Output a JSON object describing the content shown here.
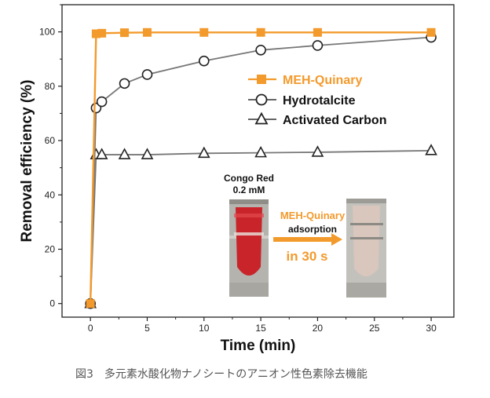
{
  "chart_data": {
    "type": "line",
    "xlabel": "Time (min)",
    "ylabel": "Removal efficiency (%)",
    "xlim": [
      -2.5,
      32
    ],
    "ylim": [
      -5,
      110
    ],
    "x_ticks": [
      "0",
      "5",
      "10",
      "15",
      "20",
      "25",
      "30"
    ],
    "y_ticks": [
      "0",
      "20",
      "40",
      "60",
      "80",
      "100"
    ],
    "grid": false,
    "legend_position": "center-right",
    "series": [
      {
        "name": "MEH-Quinary",
        "color": "#f39a2c",
        "marker": "filled-square",
        "x": [
          0,
          0.5,
          1,
          3,
          5,
          10,
          15,
          20,
          30
        ],
        "y": [
          0,
          99.3,
          99.5,
          99.7,
          99.8,
          99.8,
          99.8,
          99.8,
          99.8
        ]
      },
      {
        "name": "Hydrotalcite",
        "color": "#777777",
        "marker": "open-circle",
        "x": [
          0,
          0.5,
          1,
          3,
          5,
          10,
          15,
          20,
          30
        ],
        "y": [
          0,
          72,
          74.3,
          81,
          84.3,
          89.3,
          93.3,
          95,
          98
        ]
      },
      {
        "name": "Activated Carbon",
        "color": "#777777",
        "marker": "open-triangle",
        "x": [
          0,
          0.5,
          1,
          3,
          5,
          10,
          15,
          20,
          30
        ],
        "y": [
          0,
          54.8,
          54.8,
          54.8,
          54.8,
          55.3,
          55.5,
          55.7,
          56.3
        ]
      }
    ],
    "inset": {
      "left_label_line1": "Congo Red",
      "left_label_line2": "0.2 mM",
      "arrow_label_top": "MEH-Quinary",
      "arrow_label_mid": "adsorption",
      "arrow_label_bottom": "in 30 s",
      "before_color": "#c8242a",
      "after_color": "#d9c6bd"
    }
  },
  "caption": "図3　多元素水酸化物ナノシートのアニオン性色素除去機能"
}
